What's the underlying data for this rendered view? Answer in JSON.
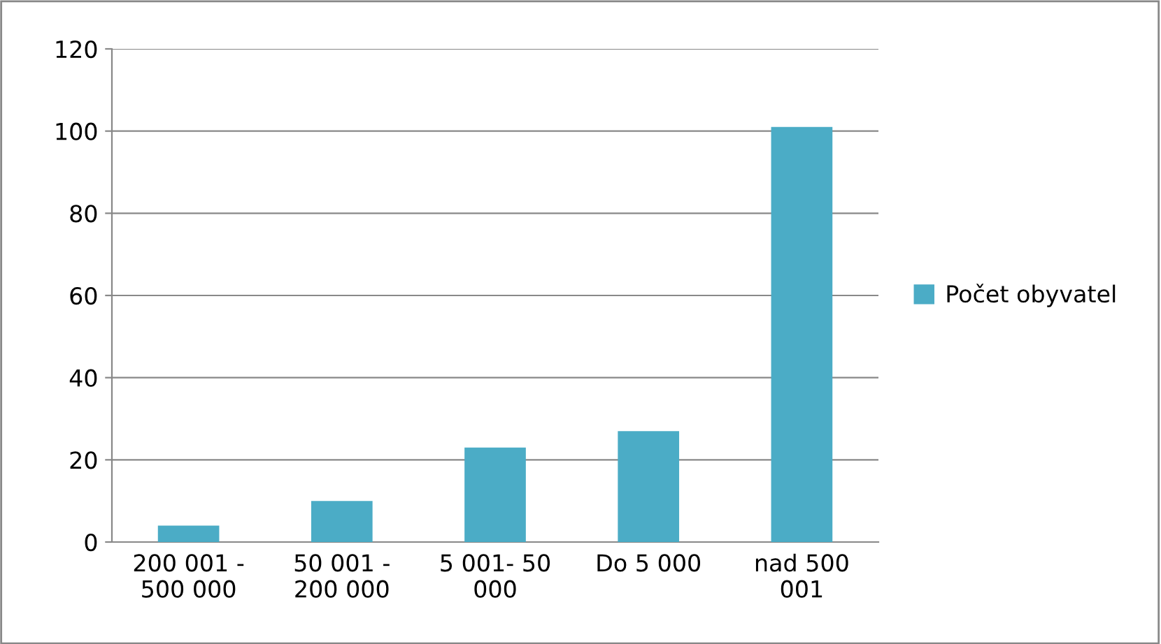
{
  "chart_data": {
    "type": "bar",
    "categories": [
      "200 001 -\n500 000",
      "50 001 -\n200 000",
      "5 001- 50\n000",
      "Do 5 000",
      "nad 500\n001"
    ],
    "series": [
      {
        "name": "Počet obyvatel",
        "color": "#4bacc6",
        "values": [
          4,
          10,
          23,
          27,
          101
        ]
      }
    ],
    "ylim": [
      0,
      120
    ],
    "yticks": [
      0,
      20,
      40,
      60,
      80,
      100,
      120
    ],
    "grid": "y",
    "legend": "right"
  }
}
